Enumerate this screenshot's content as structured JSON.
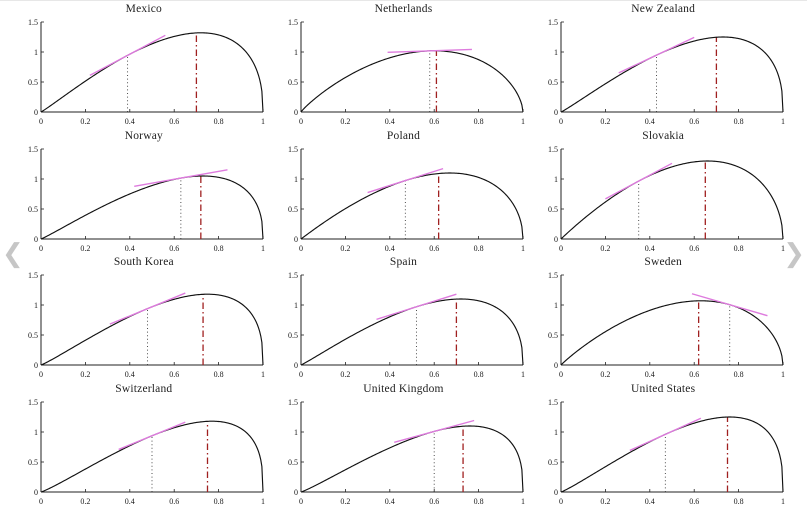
{
  "nav": {
    "prev_label": "❮",
    "next_label": "❯"
  },
  "colors": {
    "curve": "#111111",
    "dotted": "#3a3a3a",
    "dashdot": "#a02020",
    "tangent": "#de7bde",
    "axis": "#222222"
  },
  "axes": {
    "x_range": [
      0,
      1
    ],
    "y_range": [
      0,
      1.5
    ],
    "x_ticks": [
      0,
      0.2,
      0.4,
      0.6,
      0.8,
      1
    ],
    "x_tick_labels": [
      "0",
      "0.2",
      "0.4",
      "0.6",
      "0.8",
      "1"
    ],
    "y_ticks": [
      0,
      0.5,
      1,
      1.5
    ],
    "y_tick_labels": [
      "0",
      "0.5",
      "1",
      "1.5"
    ],
    "grid": false
  },
  "chart_data": [
    {
      "type": "line",
      "title": "Mexico",
      "curve": {
        "peak_x": 0.72,
        "peak_y": 1.32,
        "sharpness": 1.5
      },
      "dotted_line_x": 0.39,
      "dashdot_line_x": 0.7,
      "tangent_x": 0.39,
      "tangent_halfwidth": 0.17
    },
    {
      "type": "line",
      "title": "Netherlands",
      "curve": {
        "peak_x": 0.6,
        "peak_y": 1.02,
        "sharpness": 1.5
      },
      "dotted_line_x": 0.58,
      "dashdot_line_x": 0.61,
      "tangent_x": 0.58,
      "tangent_halfwidth": 0.19
    },
    {
      "type": "line",
      "title": "New Zealand",
      "curve": {
        "peak_x": 0.73,
        "peak_y": 1.25,
        "sharpness": 1.5
      },
      "dotted_line_x": 0.43,
      "dashdot_line_x": 0.7,
      "tangent_x": 0.43,
      "tangent_halfwidth": 0.17
    },
    {
      "type": "line",
      "title": "Norway",
      "curve": {
        "peak_x": 0.73,
        "peak_y": 1.05,
        "sharpness": 1.5
      },
      "dotted_line_x": 0.63,
      "dashdot_line_x": 0.72,
      "tangent_x": 0.63,
      "tangent_halfwidth": 0.21
    },
    {
      "type": "line",
      "title": "Poland",
      "curve": {
        "peak_x": 0.67,
        "peak_y": 1.1,
        "sharpness": 1.5
      },
      "dotted_line_x": 0.47,
      "dashdot_line_x": 0.62,
      "tangent_x": 0.47,
      "tangent_halfwidth": 0.17
    },
    {
      "type": "line",
      "title": "Slovakia",
      "curve": {
        "peak_x": 0.66,
        "peak_y": 1.3,
        "sharpness": 1.5
      },
      "dotted_line_x": 0.35,
      "dashdot_line_x": 0.65,
      "tangent_x": 0.35,
      "tangent_halfwidth": 0.15
    },
    {
      "type": "line",
      "title": "South Korea",
      "curve": {
        "peak_x": 0.75,
        "peak_y": 1.18,
        "sharpness": 1.5
      },
      "dotted_line_x": 0.48,
      "dashdot_line_x": 0.73,
      "tangent_x": 0.48,
      "tangent_halfwidth": 0.17
    },
    {
      "type": "line",
      "title": "Spain",
      "curve": {
        "peak_x": 0.72,
        "peak_y": 1.1,
        "sharpness": 1.5
      },
      "dotted_line_x": 0.52,
      "dashdot_line_x": 0.7,
      "tangent_x": 0.52,
      "tangent_halfwidth": 0.18
    },
    {
      "type": "line",
      "title": "Sweden",
      "curve": {
        "peak_x": 0.63,
        "peak_y": 1.07,
        "sharpness": 1.5
      },
      "dotted_line_x": 0.76,
      "dashdot_line_x": 0.62,
      "tangent_x": 0.76,
      "tangent_halfwidth": 0.17
    },
    {
      "type": "line",
      "title": "Switzerland",
      "curve": {
        "peak_x": 0.77,
        "peak_y": 1.18,
        "sharpness": 1.5
      },
      "dotted_line_x": 0.5,
      "dashdot_line_x": 0.75,
      "tangent_x": 0.5,
      "tangent_halfwidth": 0.15
    },
    {
      "type": "line",
      "title": "United Kingdom",
      "curve": {
        "peak_x": 0.76,
        "peak_y": 1.1,
        "sharpness": 1.5
      },
      "dotted_line_x": 0.6,
      "dashdot_line_x": 0.73,
      "tangent_x": 0.6,
      "tangent_halfwidth": 0.18
    },
    {
      "type": "line",
      "title": "United States",
      "curve": {
        "peak_x": 0.76,
        "peak_y": 1.25,
        "sharpness": 1.5
      },
      "dotted_line_x": 0.47,
      "dashdot_line_x": 0.75,
      "tangent_x": 0.47,
      "tangent_halfwidth": 0.16
    }
  ]
}
